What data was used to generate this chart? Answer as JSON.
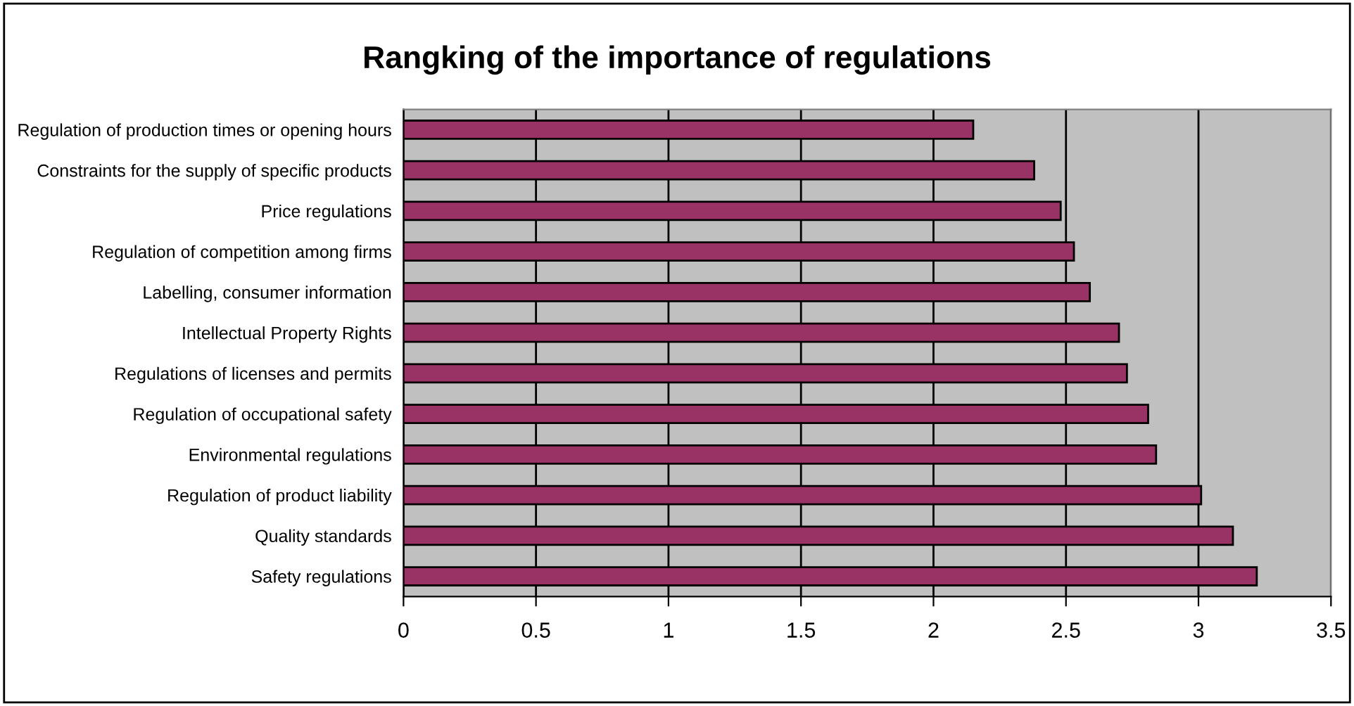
{
  "chart_data": {
    "type": "bar",
    "orientation": "horizontal",
    "title": "Rangking of the importance of regulations",
    "categories": [
      "Regulation of production times or opening hours",
      "Constraints for the supply of specific products",
      "Price regulations",
      "Regulation of competition among firms",
      "Labelling, consumer information",
      "Intellectual Property Rights",
      "Regulations of licenses and permits",
      "Regulation of occupational safety",
      "Environmental regulations",
      "Regulation of product liability",
      "Quality standards",
      "Safety regulations"
    ],
    "values": [
      2.15,
      2.38,
      2.48,
      2.53,
      2.59,
      2.7,
      2.73,
      2.81,
      2.84,
      3.01,
      3.13,
      3.22
    ],
    "color": "#993366",
    "xlim": [
      0,
      3.5
    ],
    "xticks": [
      0,
      0.5,
      1,
      1.5,
      2,
      2.5,
      3,
      3.5
    ],
    "grid": "x"
  }
}
